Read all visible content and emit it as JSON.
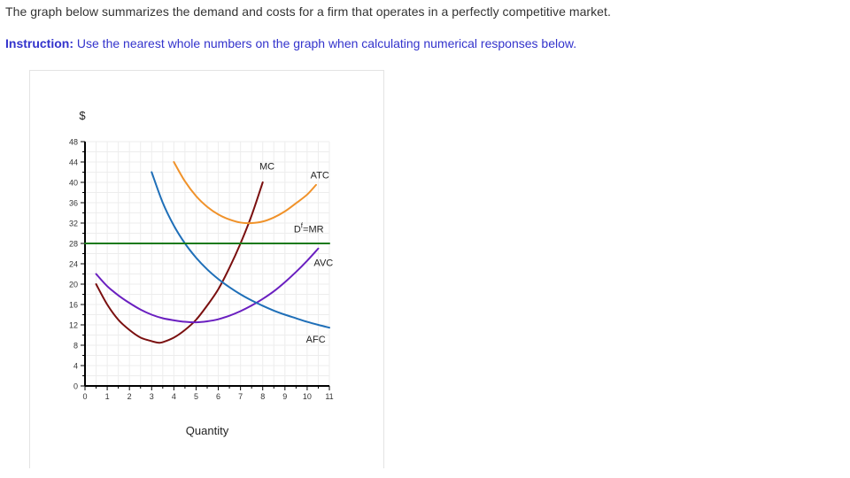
{
  "intro_text": "The graph below summarizes the demand and costs for a firm that operates in a perfectly competitive market.",
  "instruction": {
    "label": "Instruction:",
    "text": " Use the nearest whole numbers on the graph when calculating numerical responses below."
  },
  "colors": {
    "mc": "#7a0f0f",
    "atc": "#f0922a",
    "avc": "#6a1fc0",
    "afc": "#1f6fb8",
    "mr": "#1a7a1a",
    "instruction": "#3333cc",
    "grid": "#ededed"
  },
  "chart_data": {
    "type": "line",
    "title": "",
    "xlabel": "Quantity",
    "ylabel": "$",
    "xlim": [
      0,
      11
    ],
    "ylim": [
      0,
      48
    ],
    "x_ticks": [
      0,
      1,
      2,
      3,
      4,
      5,
      6,
      7,
      8,
      9,
      10,
      11
    ],
    "y_ticks": [
      0,
      4,
      8,
      12,
      16,
      20,
      24,
      28,
      32,
      36,
      40,
      44,
      48
    ],
    "grid": true,
    "series": [
      {
        "name": "MC",
        "label": "MC",
        "color": "#7a0f0f",
        "points": [
          [
            0.5,
            20
          ],
          [
            1,
            16
          ],
          [
            1.5,
            13
          ],
          [
            2,
            11
          ],
          [
            2.5,
            9.5
          ],
          [
            3,
            8.8
          ],
          [
            3.3,
            8.5
          ],
          [
            3.5,
            8.6
          ],
          [
            4,
            9.5
          ],
          [
            4.5,
            11
          ],
          [
            5,
            13
          ],
          [
            5.5,
            15.8
          ],
          [
            6,
            19
          ],
          [
            6.5,
            23.2
          ],
          [
            7,
            28
          ],
          [
            7.5,
            33.5
          ],
          [
            8,
            40
          ]
        ]
      },
      {
        "name": "ATC",
        "label": "ATC",
        "color": "#f0922a",
        "points": [
          [
            4,
            44
          ],
          [
            4.5,
            40.2
          ],
          [
            5,
            37.3
          ],
          [
            5.5,
            35.2
          ],
          [
            6,
            33.7
          ],
          [
            6.5,
            32.7
          ],
          [
            7,
            32.1
          ],
          [
            7.5,
            32
          ],
          [
            8,
            32.3
          ],
          [
            8.5,
            33.1
          ],
          [
            9,
            34.3
          ],
          [
            9.5,
            35.9
          ],
          [
            10,
            37.6
          ],
          [
            10.4,
            39.5
          ]
        ]
      },
      {
        "name": "AVC",
        "label": "AVC",
        "color": "#6a1fc0",
        "points": [
          [
            0.5,
            22
          ],
          [
            1,
            19.6
          ],
          [
            1.5,
            17.8
          ],
          [
            2,
            16.3
          ],
          [
            2.5,
            15
          ],
          [
            3,
            14
          ],
          [
            3.5,
            13.3
          ],
          [
            4,
            12.9
          ],
          [
            4.5,
            12.6
          ],
          [
            5,
            12.5
          ],
          [
            5.5,
            12.7
          ],
          [
            6,
            13.1
          ],
          [
            6.5,
            13.8
          ],
          [
            7,
            14.7
          ],
          [
            7.5,
            15.8
          ],
          [
            8,
            17.1
          ],
          [
            8.5,
            18.6
          ],
          [
            9,
            20.4
          ],
          [
            9.5,
            22.4
          ],
          [
            10,
            24.6
          ],
          [
            10.5,
            27
          ]
        ]
      },
      {
        "name": "AFC",
        "label": "AFC",
        "color": "#1f6fb8",
        "points": [
          [
            3,
            42
          ],
          [
            3.5,
            36
          ],
          [
            4,
            31.5
          ],
          [
            4.5,
            28
          ],
          [
            5,
            25.2
          ],
          [
            5.5,
            22.9
          ],
          [
            6,
            21
          ],
          [
            6.5,
            19.4
          ],
          [
            7,
            18
          ],
          [
            7.5,
            16.8
          ],
          [
            8,
            15.75
          ],
          [
            8.5,
            14.8
          ],
          [
            9,
            14
          ],
          [
            9.5,
            13.3
          ],
          [
            10,
            12.6
          ],
          [
            10.5,
            12
          ],
          [
            11,
            11.45
          ]
        ]
      },
      {
        "name": "Df=MR",
        "label": "D",
        "label_sup": "f",
        "label_rest": "=MR",
        "color": "#1a7a1a",
        "points": [
          [
            0,
            28
          ],
          [
            11,
            28
          ]
        ]
      }
    ],
    "annotations": [
      {
        "text": "MC",
        "x": 7.85,
        "y": 42.5
      },
      {
        "text": "ATC",
        "x": 10.15,
        "y": 40.8
      },
      {
        "text": "Df=MR",
        "x": 9.4,
        "y": 30.2
      },
      {
        "text": "AVC",
        "x": 10.3,
        "y": 23.6
      },
      {
        "text": "AFC",
        "x": 9.95,
        "y": 8.5
      }
    ]
  }
}
